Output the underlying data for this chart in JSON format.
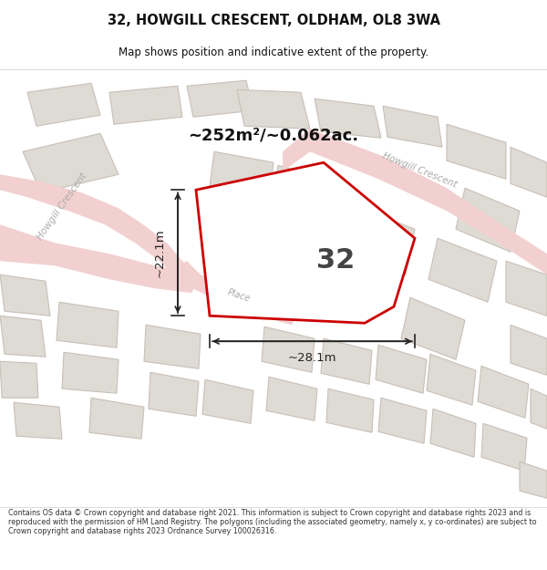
{
  "title_line1": "32, HOWGILL CRESCENT, OLDHAM, OL8 3WA",
  "title_line2": "Map shows position and indicative extent of the property.",
  "area_text": "~252m²/~0.062ac.",
  "plot_number": "32",
  "dim_width": "~28.1m",
  "dim_height": "~22.1m",
  "footer": "Contains OS data © Crown copyright and database right 2021. This information is subject to Crown copyright and database rights 2023 and is reproduced with the permission of HM Land Registry. The polygons (including the associated geometry, namely x, y co-ordinates) are subject to Crown copyright and database rights 2023 Ordnance Survey 100026316.",
  "map_bg": "#f0eeea",
  "plot_fill": "white",
  "plot_edge": "#cc0000",
  "road_color": "#f2d0d0",
  "road_edge": "#e8b8b8",
  "building_fill": "#dedad4",
  "building_edge": "#c8c0b8",
  "dim_line_color": "#222222",
  "text_color": "#111111",
  "road_label_color": "#aaaaaa",
  "footer_color": "#333333"
}
